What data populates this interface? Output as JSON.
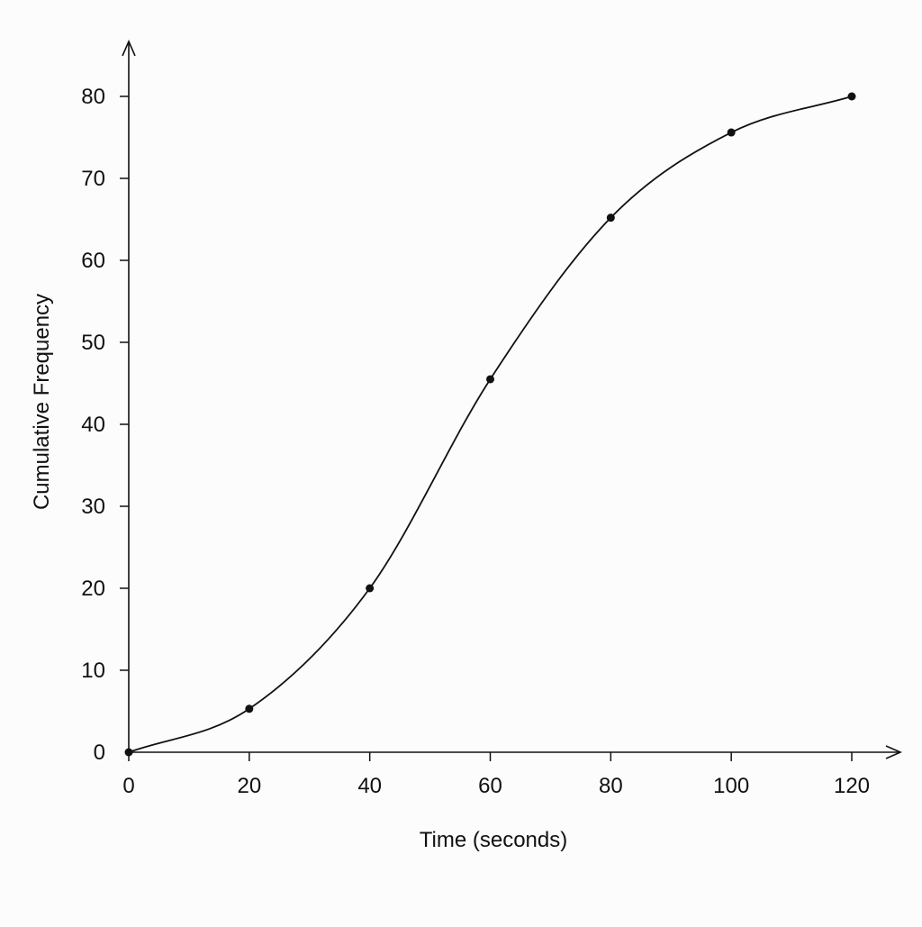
{
  "chart_data": {
    "type": "line",
    "title": "",
    "xlabel": "Time (seconds)",
    "ylabel": "Cumulative Frequency",
    "xlim": [
      0,
      120
    ],
    "ylim": [
      0,
      80
    ],
    "x_ticks": [
      0,
      20,
      40,
      60,
      80,
      100,
      120
    ],
    "x_tick_labels": [
      "0",
      "20",
      "40",
      "60",
      "80",
      "100",
      "120"
    ],
    "y_ticks": [
      0,
      10,
      20,
      30,
      40,
      50,
      60,
      70,
      80
    ],
    "y_tick_labels": [
      "0",
      "10",
      "20",
      "30",
      "40",
      "50",
      "60",
      "70",
      "80"
    ],
    "grid": false,
    "legend": "none",
    "series": [
      {
        "x": [
          0,
          20,
          40,
          60,
          80,
          100,
          120
        ],
        "values": [
          0,
          5.3,
          20,
          45.5,
          65.2,
          75.6,
          80
        ],
        "smooth": true,
        "markers": true
      }
    ],
    "colors": {
      "line": "#111111",
      "marker": "#111111",
      "axis": "#111111",
      "background": "#fcfcfc"
    }
  }
}
